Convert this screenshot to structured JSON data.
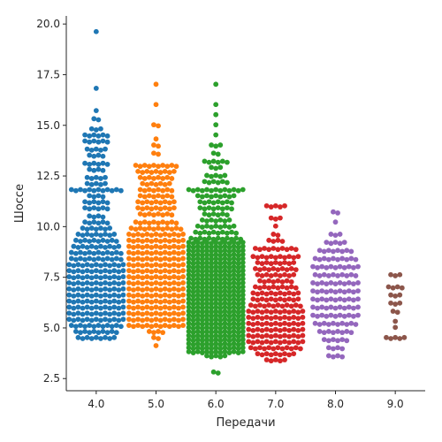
{
  "chart_data": {
    "type": "scatter",
    "subtype": "swarm",
    "title": "",
    "xlabel": "Передачи",
    "ylabel": "Шоссе",
    "ylim": [
      1.9,
      20.4
    ],
    "grid": false,
    "legend": "none",
    "y_ticks": [
      "2.5",
      "5.0",
      "7.5",
      "10.0",
      "12.5",
      "15.0",
      "17.5",
      "20.0"
    ],
    "y_tick_values": [
      2.5,
      5.0,
      7.5,
      10.0,
      12.5,
      15.0,
      17.5,
      20.0
    ],
    "categories": [
      "4.0",
      "5.0",
      "6.0",
      "7.0",
      "8.0",
      "9.0"
    ],
    "series": [
      {
        "category": "4.0",
        "color": "#1f77b4",
        "counts": [
          [
            4.5,
            9
          ],
          [
            4.8,
            10
          ],
          [
            5.1,
            12
          ],
          [
            5.4,
            13
          ],
          [
            5.7,
            13
          ],
          [
            6.0,
            13
          ],
          [
            6.3,
            13
          ],
          [
            6.6,
            13
          ],
          [
            6.9,
            13
          ],
          [
            7.2,
            13
          ],
          [
            7.5,
            13
          ],
          [
            7.8,
            13
          ],
          [
            8.1,
            13
          ],
          [
            8.4,
            12
          ],
          [
            8.7,
            12
          ],
          [
            9.0,
            11
          ],
          [
            9.3,
            10
          ],
          [
            9.6,
            9
          ],
          [
            9.9,
            7
          ],
          [
            10.2,
            6
          ],
          [
            10.5,
            4
          ],
          [
            10.9,
            6
          ],
          [
            11.2,
            6
          ],
          [
            11.5,
            4
          ],
          [
            11.8,
            12
          ],
          [
            12.1,
            5
          ],
          [
            12.4,
            5
          ],
          [
            12.8,
            4
          ],
          [
            13.1,
            6
          ],
          [
            13.5,
            4
          ],
          [
            13.8,
            5
          ],
          [
            14.2,
            6
          ],
          [
            14.5,
            6
          ],
          [
            14.8,
            3
          ],
          [
            15.3,
            2
          ],
          [
            15.7,
            1
          ],
          [
            16.8,
            1
          ],
          [
            19.6,
            1
          ]
        ]
      },
      {
        "category": "5.0",
        "color": "#ff7f0e",
        "counts": [
          [
            4.1,
            1
          ],
          [
            4.5,
            2
          ],
          [
            4.8,
            4
          ],
          [
            5.1,
            13
          ],
          [
            5.4,
            13
          ],
          [
            5.7,
            13
          ],
          [
            6.0,
            13
          ],
          [
            6.3,
            13
          ],
          [
            6.6,
            13
          ],
          [
            6.9,
            13
          ],
          [
            7.2,
            13
          ],
          [
            7.5,
            13
          ],
          [
            7.8,
            13
          ],
          [
            8.1,
            13
          ],
          [
            8.4,
            13
          ],
          [
            8.7,
            13
          ],
          [
            9.0,
            13
          ],
          [
            9.3,
            13
          ],
          [
            9.6,
            13
          ],
          [
            9.9,
            12
          ],
          [
            10.2,
            10
          ],
          [
            10.6,
            8
          ],
          [
            10.9,
            9
          ],
          [
            11.2,
            9
          ],
          [
            11.5,
            8
          ],
          [
            11.8,
            8
          ],
          [
            12.1,
            7
          ],
          [
            12.4,
            8
          ],
          [
            12.7,
            9
          ],
          [
            13.0,
            10
          ],
          [
            13.6,
            2
          ],
          [
            14.0,
            2
          ],
          [
            14.3,
            1
          ],
          [
            15.0,
            2
          ],
          [
            16.0,
            1
          ],
          [
            17.0,
            1
          ]
        ]
      },
      {
        "category": "6.0",
        "color": "#2ca02c",
        "counts": [
          [
            2.8,
            2
          ],
          [
            3.6,
            5
          ],
          [
            3.8,
            13
          ],
          [
            4.0,
            13
          ],
          [
            4.2,
            13
          ],
          [
            4.4,
            13
          ],
          [
            4.6,
            13
          ],
          [
            4.8,
            13
          ],
          [
            5.0,
            13
          ],
          [
            5.2,
            13
          ],
          [
            5.4,
            13
          ],
          [
            5.6,
            13
          ],
          [
            5.8,
            13
          ],
          [
            6.0,
            13
          ],
          [
            6.2,
            13
          ],
          [
            6.4,
            13
          ],
          [
            6.6,
            13
          ],
          [
            6.8,
            13
          ],
          [
            7.0,
            13
          ],
          [
            7.2,
            13
          ],
          [
            7.4,
            13
          ],
          [
            7.6,
            13
          ],
          [
            7.8,
            13
          ],
          [
            8.0,
            13
          ],
          [
            8.2,
            13
          ],
          [
            8.4,
            13
          ],
          [
            8.6,
            13
          ],
          [
            8.8,
            13
          ],
          [
            9.0,
            13
          ],
          [
            9.2,
            13
          ],
          [
            9.4,
            12
          ],
          [
            9.7,
            10
          ],
          [
            10.0,
            9
          ],
          [
            10.3,
            7
          ],
          [
            10.6,
            6
          ],
          [
            10.9,
            8
          ],
          [
            11.2,
            8
          ],
          [
            11.5,
            9
          ],
          [
            11.8,
            13
          ],
          [
            12.2,
            6
          ],
          [
            12.5,
            5
          ],
          [
            12.9,
            3
          ],
          [
            13.2,
            6
          ],
          [
            13.6,
            2
          ],
          [
            14.0,
            3
          ],
          [
            14.5,
            1
          ],
          [
            15.0,
            1
          ],
          [
            15.5,
            1
          ],
          [
            16.0,
            1
          ],
          [
            17.0,
            1
          ]
        ]
      },
      {
        "category": "7.0",
        "color": "#d62728",
        "counts": [
          [
            3.4,
            5
          ],
          [
            3.7,
            9
          ],
          [
            4.0,
            12
          ],
          [
            4.3,
            13
          ],
          [
            4.6,
            13
          ],
          [
            4.9,
            13
          ],
          [
            5.2,
            13
          ],
          [
            5.5,
            13
          ],
          [
            5.8,
            13
          ],
          [
            6.1,
            12
          ],
          [
            6.4,
            11
          ],
          [
            6.7,
            11
          ],
          [
            7.0,
            10
          ],
          [
            7.3,
            8
          ],
          [
            7.6,
            9
          ],
          [
            7.9,
            10
          ],
          [
            8.2,
            9
          ],
          [
            8.5,
            11
          ],
          [
            8.9,
            10
          ],
          [
            9.3,
            4
          ],
          [
            9.6,
            2
          ],
          [
            10.0,
            1
          ],
          [
            10.4,
            3
          ],
          [
            11.0,
            5
          ]
        ]
      },
      {
        "category": "8.0",
        "color": "#9467bd",
        "counts": [
          [
            3.6,
            4
          ],
          [
            4.0,
            4
          ],
          [
            4.4,
            6
          ],
          [
            4.8,
            8
          ],
          [
            5.2,
            10
          ],
          [
            5.6,
            11
          ],
          [
            6.0,
            11
          ],
          [
            6.4,
            11
          ],
          [
            6.8,
            11
          ],
          [
            7.2,
            11
          ],
          [
            7.6,
            10
          ],
          [
            8.0,
            11
          ],
          [
            8.4,
            10
          ],
          [
            8.8,
            8
          ],
          [
            9.2,
            5
          ],
          [
            9.6,
            3
          ],
          [
            10.2,
            1
          ],
          [
            10.7,
            2
          ]
        ]
      },
      {
        "category": "9.0",
        "color": "#8c564b",
        "counts": [
          [
            4.5,
            5
          ],
          [
            5.0,
            1
          ],
          [
            5.3,
            1
          ],
          [
            5.8,
            2
          ],
          [
            6.2,
            3
          ],
          [
            6.6,
            3
          ],
          [
            7.0,
            4
          ],
          [
            7.6,
            3
          ]
        ]
      }
    ]
  }
}
